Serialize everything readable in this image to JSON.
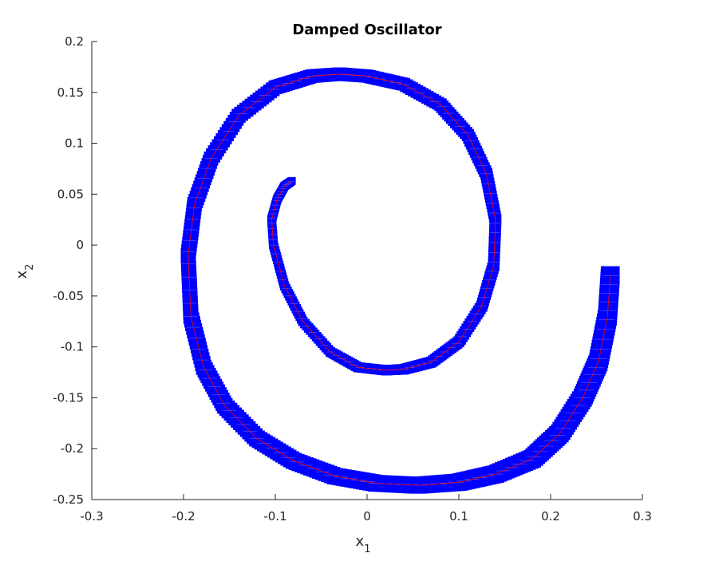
{
  "chart_data": {
    "type": "line",
    "title": "Damped Oscillator",
    "xlabel": {
      "base": "x",
      "sub": "1"
    },
    "ylabel": {
      "base": "x",
      "sub": "2"
    },
    "xlim": [
      -0.3,
      0.3
    ],
    "ylim": [
      -0.25,
      0.2
    ],
    "xticks": [
      -0.3,
      -0.2,
      -0.1,
      0,
      0.1,
      0.2,
      0.3
    ],
    "xtick_labels": [
      "-0.3",
      "-0.2",
      "-0.1",
      "0",
      "0.1",
      "0.2",
      "0.3"
    ],
    "yticks": [
      -0.25,
      -0.2,
      -0.15,
      -0.1,
      -0.05,
      0,
      0.05,
      0.1,
      0.15,
      0.2
    ],
    "ytick_labels": [
      "-0.25",
      "-0.2",
      "-0.15",
      "-0.1",
      "-0.05",
      "0",
      "0.05",
      "0.1",
      "0.15",
      "0.2"
    ],
    "grid": false,
    "legend": "none",
    "colors": {
      "tube": "#0000ff",
      "tube_ticks": "#c8c8ff",
      "trajectory": "#ff0000",
      "axes": "#262626"
    },
    "series": [
      {
        "role": "center trajectory",
        "style": "red thin line",
        "x": [
          0.265,
          0.262,
          0.252,
          0.235,
          0.21,
          0.18,
          0.14,
          0.1,
          0.055,
          0.01,
          -0.035,
          -0.08,
          -0.12,
          -0.155,
          -0.178,
          -0.192,
          -0.195,
          -0.188,
          -0.17,
          -0.14,
          -0.1,
          -0.06,
          -0.03,
          0.0,
          0.04,
          0.08,
          0.11,
          0.13,
          0.14,
          0.138,
          0.125,
          0.1,
          0.07,
          0.04,
          0.02,
          -0.01,
          -0.04,
          -0.07,
          -0.09,
          -0.102,
          -0.104,
          -0.098,
          -0.09,
          -0.082
        ],
        "y": [
          -0.03,
          -0.07,
          -0.115,
          -0.15,
          -0.185,
          -0.21,
          -0.225,
          -0.233,
          -0.236,
          -0.234,
          -0.227,
          -0.212,
          -0.19,
          -0.158,
          -0.12,
          -0.07,
          -0.01,
          0.04,
          0.085,
          0.127,
          0.155,
          0.166,
          0.168,
          0.166,
          0.158,
          0.138,
          0.108,
          0.07,
          0.025,
          -0.02,
          -0.06,
          -0.095,
          -0.115,
          -0.122,
          -0.123,
          -0.12,
          -0.105,
          -0.075,
          -0.04,
          0.0,
          0.025,
          0.045,
          0.058,
          0.063
        ]
      },
      {
        "role": "reachable tube",
        "style": "blue filled boxes",
        "box_half_width_start": 0.01,
        "box_half_width_end": 0.004
      }
    ]
  }
}
